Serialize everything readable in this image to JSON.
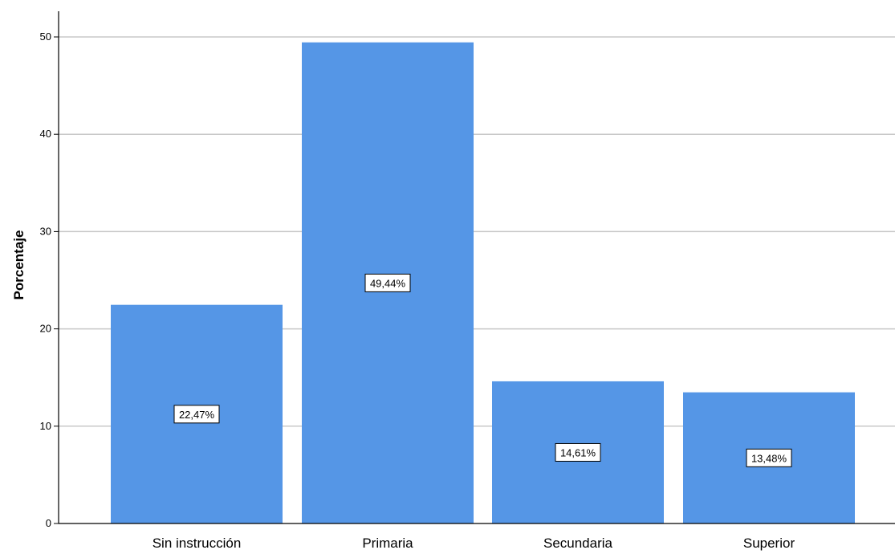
{
  "chart_data": {
    "type": "bar",
    "categories": [
      "Sin instrucción",
      "Primaria",
      "Secundaria",
      "Superior"
    ],
    "values": [
      22.47,
      49.44,
      14.61,
      13.48
    ],
    "data_labels": [
      "22,47%",
      "49,44%",
      "14,61%",
      "13,48%"
    ],
    "title": "",
    "xlabel": "",
    "ylabel": "Porcentaje",
    "ylim": [
      0,
      50
    ],
    "yticks": [
      0,
      10,
      20,
      30,
      40,
      50
    ],
    "ytick_labels": [
      "0",
      "10",
      "20",
      "30",
      "40",
      "50"
    ],
    "grid": true,
    "bar_color": "#5596E6",
    "grid_color": "#C8C8C8"
  }
}
